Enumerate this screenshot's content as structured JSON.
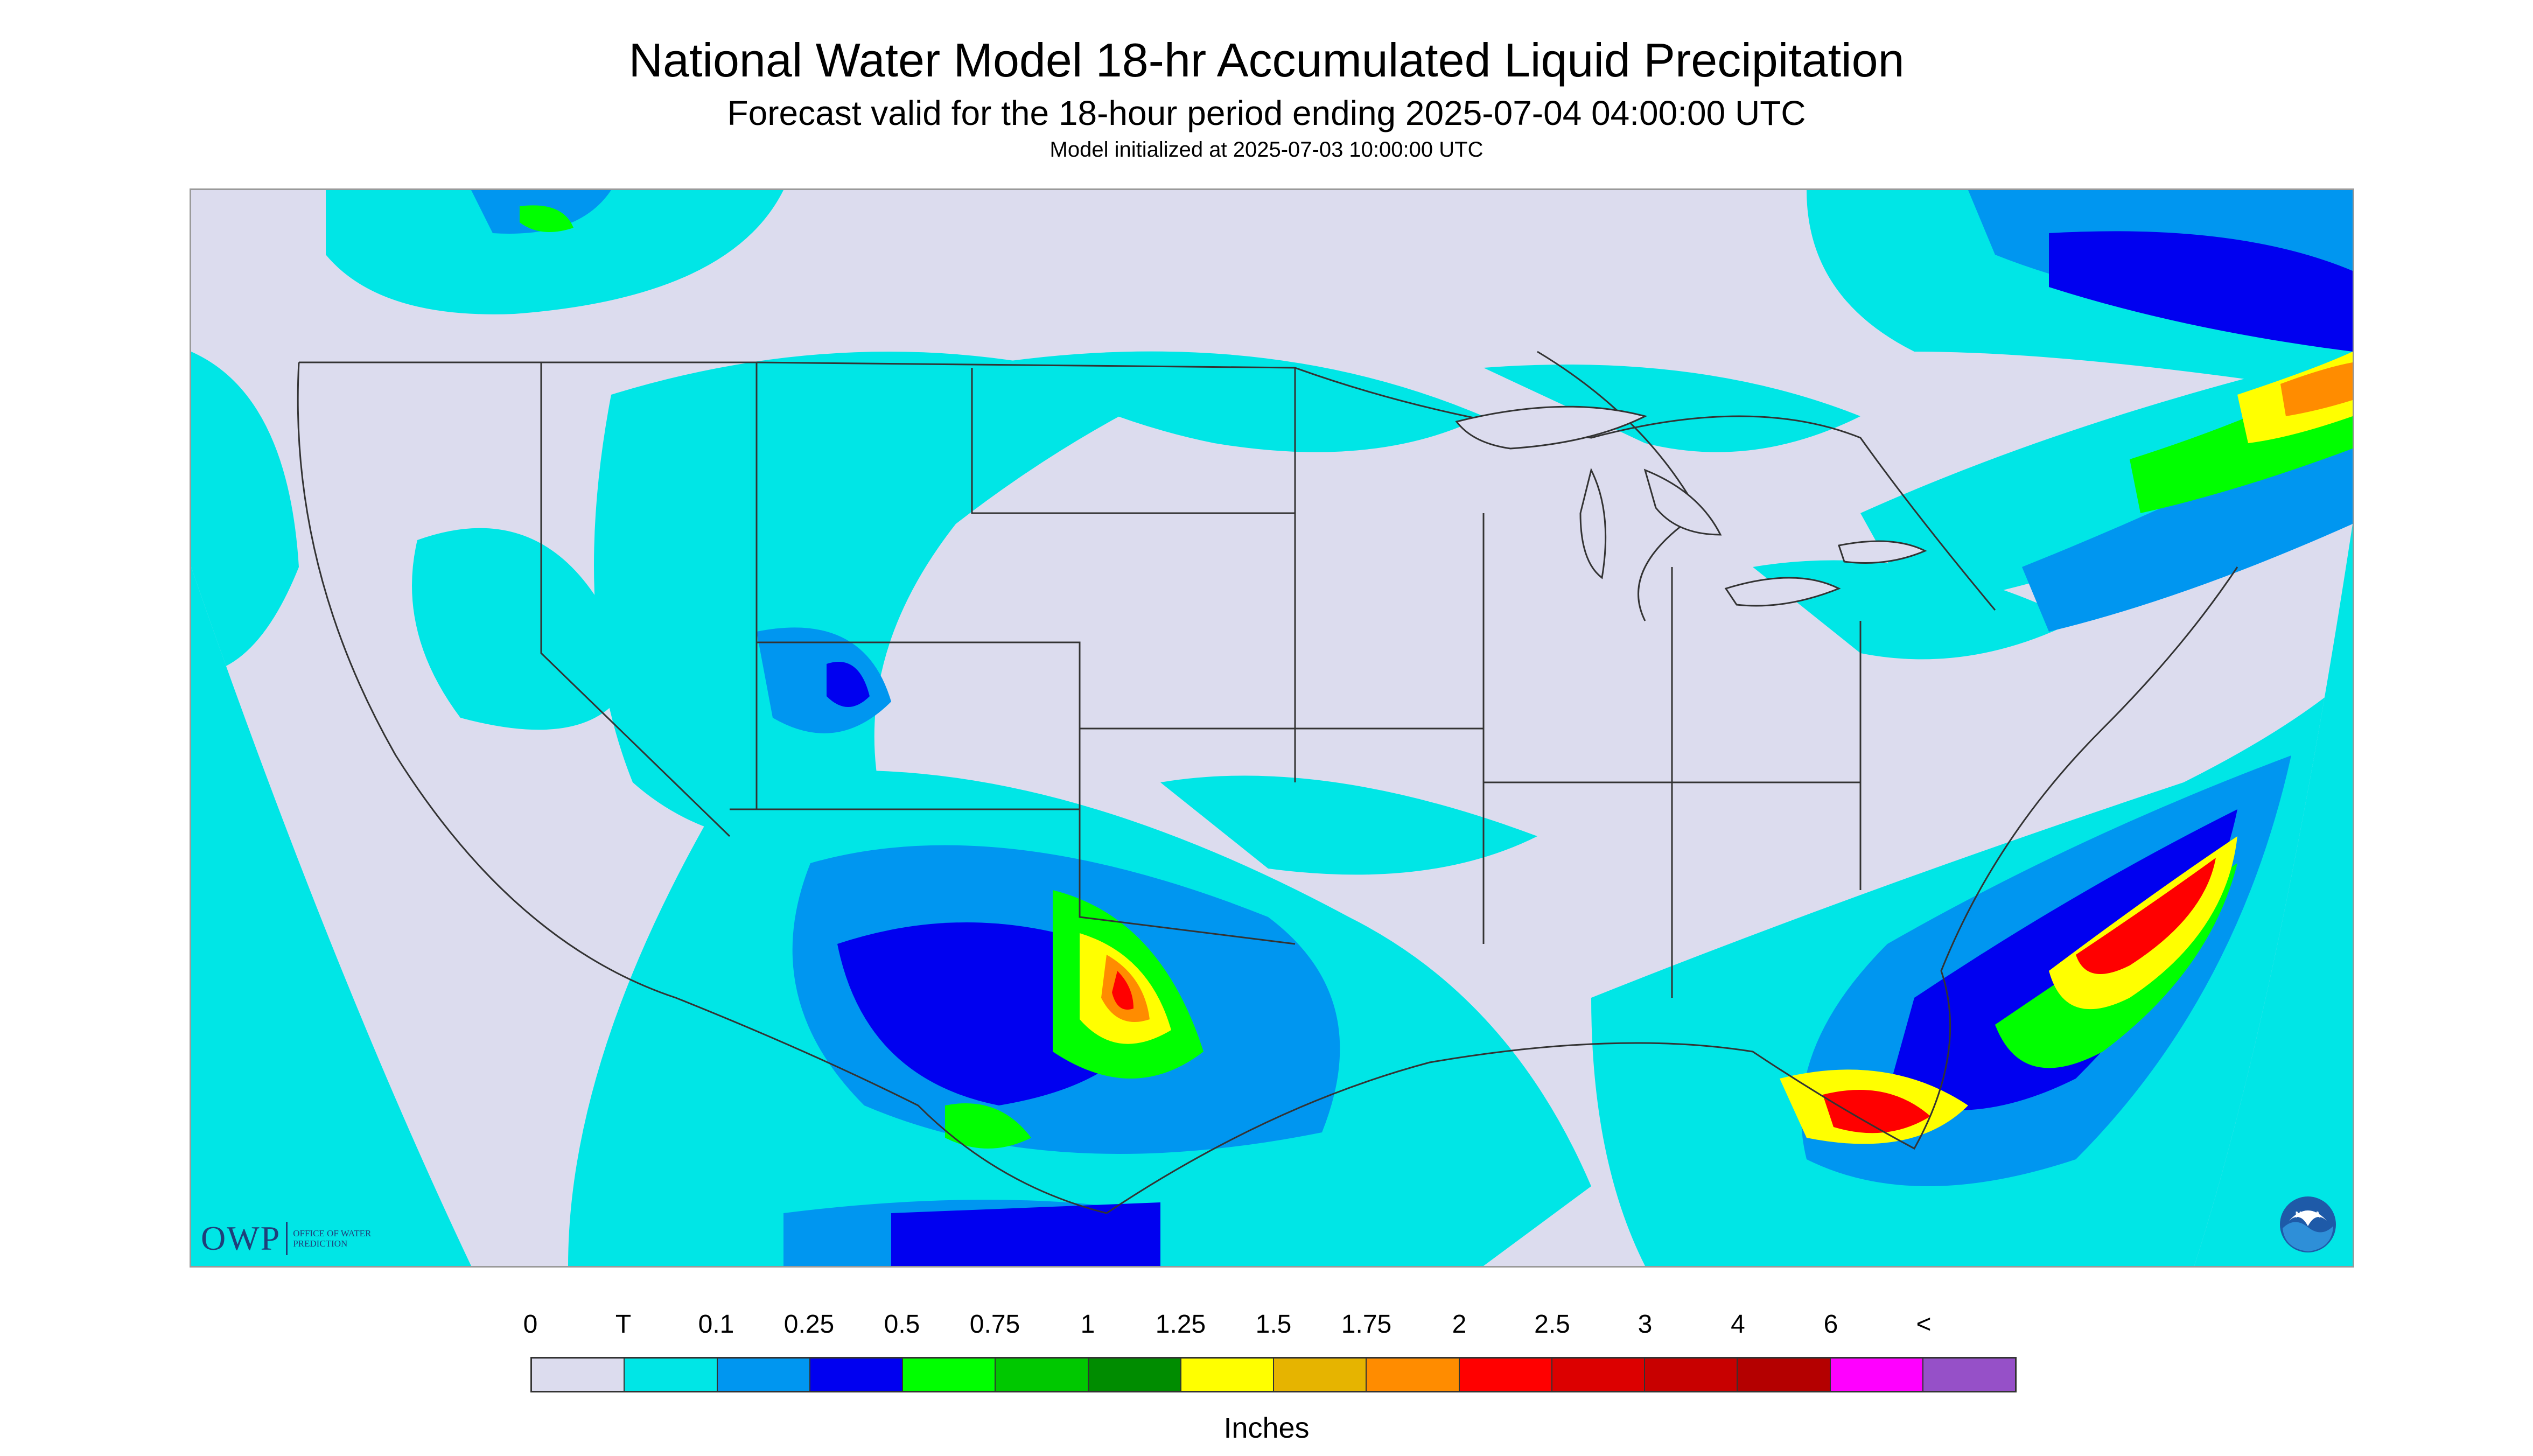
{
  "title": "National Water Model 18-hr Accumulated Liquid Precipitation",
  "subtitle": "Forecast valid for the 18-hour period ending 2025-07-04 04:00:00 UTC",
  "init_line": "Model initialized at 2025-07-03 10:00:00 UTC",
  "logos": {
    "owp_text": "OWP",
    "owp_subtext": "OFFICE OF WATER PREDICTION",
    "noaa_text": "NOAA"
  },
  "legend": {
    "units": "Inches",
    "labels": [
      "0",
      "T",
      "0.1",
      "0.25",
      "0.5",
      "0.75",
      "1",
      "1.25",
      "1.5",
      "1.75",
      "2",
      "2.5",
      "3",
      "4",
      "6",
      "<"
    ],
    "colors": [
      "#dcdcee",
      "#00e6e6",
      "#0096f0",
      "#0000f0",
      "#00ff00",
      "#00c800",
      "#008c00",
      "#ffff00",
      "#e6b400",
      "#ff8c00",
      "#ff0000",
      "#dc0000",
      "#c80000",
      "#b40000",
      "#ff00ff",
      "#9650c8"
    ]
  },
  "map": {
    "background_color": "#dcdcee",
    "outside_color": "#00e6e6",
    "state_line_color": "#333333"
  }
}
